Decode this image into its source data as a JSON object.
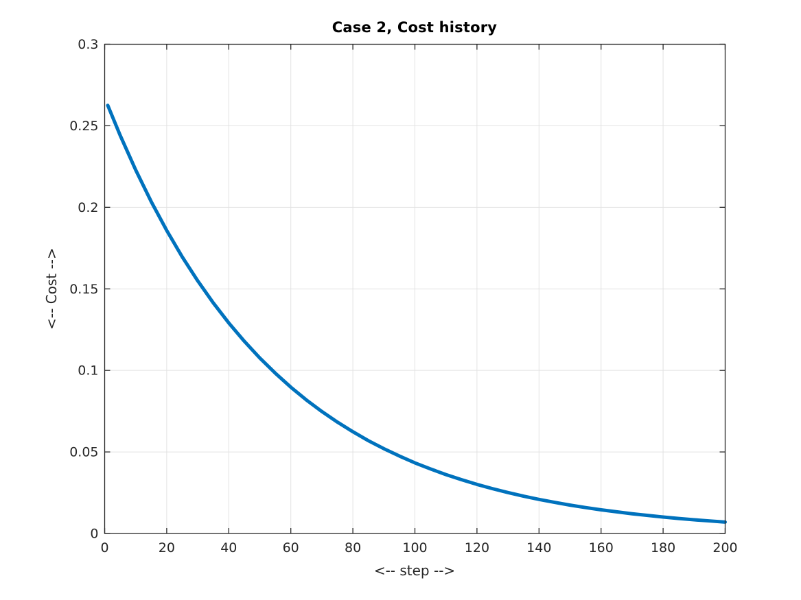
{
  "chart_data": {
    "type": "line",
    "title": "Case 2, Cost history",
    "xlabel": "<-- step -->",
    "ylabel": "<-- Cost -->",
    "xlim": [
      0,
      200
    ],
    "ylim": [
      0,
      0.3
    ],
    "grid": true,
    "legend_position": "none",
    "xticks": {
      "values": [
        0,
        20,
        40,
        60,
        80,
        100,
        120,
        140,
        160,
        180,
        200
      ],
      "labels": [
        "0",
        "20",
        "40",
        "60",
        "80",
        "100",
        "120",
        "140",
        "160",
        "180",
        "200"
      ]
    },
    "yticks": {
      "values": [
        0,
        0.05,
        0.1,
        0.15,
        0.2,
        0.25,
        0.3
      ],
      "labels": [
        "0",
        "0.05",
        "0.1",
        "0.15",
        "0.2",
        "0.25",
        "0.3"
      ]
    },
    "series": [
      {
        "name": "cost",
        "x": [
          1,
          5,
          10,
          15,
          20,
          25,
          30,
          35,
          40,
          45,
          50,
          55,
          60,
          65,
          70,
          75,
          80,
          85,
          90,
          95,
          100,
          105,
          110,
          115,
          120,
          125,
          130,
          135,
          140,
          145,
          150,
          155,
          160,
          165,
          170,
          175,
          180,
          185,
          190,
          195,
          200
        ],
        "y": [
          0.2625,
          0.2441,
          0.2229,
          0.2035,
          0.1858,
          0.1696,
          0.1549,
          0.1414,
          0.1291,
          0.1179,
          0.1076,
          0.0983,
          0.0897,
          0.0819,
          0.0748,
          0.0683,
          0.0624,
          0.0569,
          0.052,
          0.0475,
          0.0433,
          0.0396,
          0.0361,
          0.033,
          0.0301,
          0.0275,
          0.0251,
          0.0229,
          0.0209,
          0.0191,
          0.0174,
          0.0159,
          0.0145,
          0.0133,
          0.0121,
          0.0111,
          0.0101,
          0.0092,
          0.0084,
          0.0077,
          0.007
        ]
      }
    ],
    "colors": {
      "line": "#0072BD",
      "grid": "#e2e2e2",
      "axis": "#262626",
      "background": "#ffffff",
      "title": "#000000"
    }
  }
}
